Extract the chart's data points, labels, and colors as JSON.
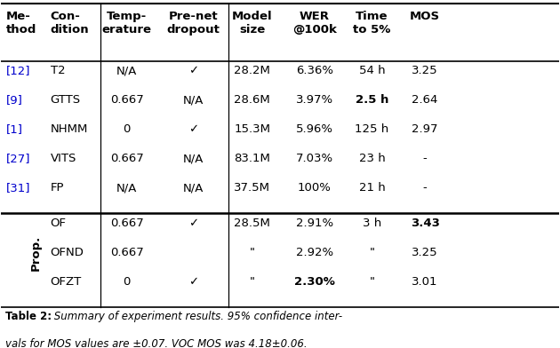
{
  "figsize": [
    6.3,
    3.92
  ],
  "dpi": 100,
  "bg_color": "#ffffff",
  "caption_bold": "Table 2:",
  "caption_italic": " Summary of experiment results. 95% confidence inter-\nvals for MOS values are ±0.07. VOC MOS was 4.18±0.06.",
  "rows_baseline": [
    {
      "method": "[12]",
      "condition": "T2",
      "temp": "N/A",
      "prenet": "✓",
      "model": "28.2M",
      "wer": "6.36%",
      "time": "54 h",
      "mos": "3.25",
      "wer_bold": false,
      "time_bold": false,
      "mos_bold": false
    },
    {
      "method": "[9]",
      "condition": "GTTS",
      "temp": "0.667",
      "prenet": "N/A",
      "model": "28.6M",
      "wer": "3.97%",
      "time": "2.5 h",
      "mos": "2.64",
      "wer_bold": false,
      "time_bold": true,
      "mos_bold": false
    },
    {
      "method": "[1]",
      "condition": "NHMM",
      "temp": "0",
      "prenet": "✓",
      "model": "15.3M",
      "wer": "5.96%",
      "time": "125 h",
      "mos": "2.97",
      "wer_bold": false,
      "time_bold": false,
      "mos_bold": false
    },
    {
      "method": "[27]",
      "condition": "VITS",
      "temp": "0.667",
      "prenet": "N/A",
      "model": "83.1M",
      "wer": "7.03%",
      "time": "23 h",
      "mos": "-",
      "wer_bold": false,
      "time_bold": false,
      "mos_bold": false
    },
    {
      "method": "[31]",
      "condition": "FP",
      "temp": "N/A",
      "prenet": "N/A",
      "model": "37.5M",
      "wer": "100%",
      "time": "21 h",
      "mos": "-",
      "wer_bold": false,
      "time_bold": false,
      "mos_bold": false
    }
  ],
  "rows_proposed": [
    {
      "condition": "OF",
      "temp": "0.667",
      "prenet": "✓",
      "model": "28.5M",
      "wer": "2.91%",
      "time": "3 h",
      "mos": "3.43",
      "wer_bold": false,
      "time_bold": false,
      "mos_bold": true
    },
    {
      "condition": "OFND",
      "temp": "0.667",
      "prenet": "",
      "model": "\"",
      "wer": "2.92%",
      "time": "\"",
      "mos": "3.25",
      "wer_bold": false,
      "time_bold": false,
      "mos_bold": false
    },
    {
      "condition": "OFZT",
      "temp": "0",
      "prenet": "✓",
      "model": "\"",
      "wer": "2.30%",
      "time": "\"",
      "mos": "3.01",
      "wer_bold": true,
      "time_bold": false,
      "mos_bold": false
    }
  ],
  "blue_color": "#0000cc",
  "black_color": "#000000",
  "header_fontsize": 9.5,
  "data_fontsize": 9.5,
  "caption_fontsize": 8.5
}
